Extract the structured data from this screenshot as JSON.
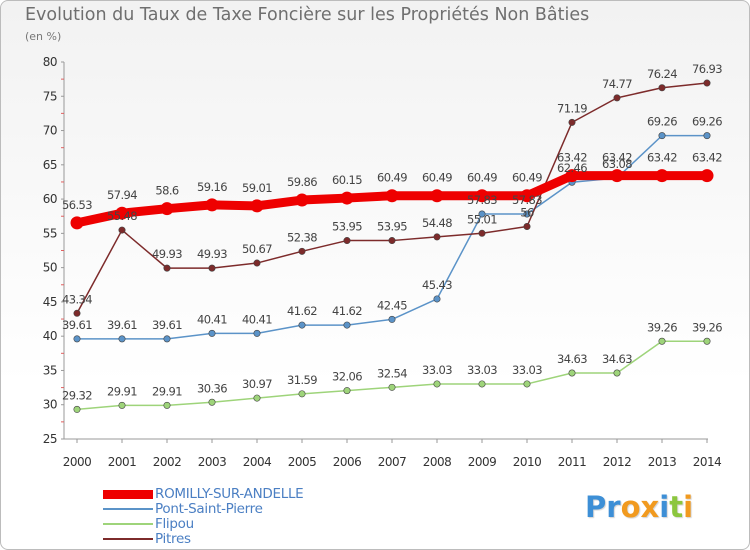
{
  "title": "Evolution du Taux de Taxe Foncière sur les Propriétés Non Bâties",
  "unit": "(en %)",
  "logo": {
    "text": "Proxiti",
    "letters": [
      "P",
      "r",
      "o",
      "x",
      "i",
      "t",
      "i"
    ],
    "colors": [
      "#3d8fd6",
      "#3d8fd6",
      "#f19a1f",
      "#f19a1f",
      "#3d8fd6",
      "#8cc63f",
      "#f19a1f"
    ]
  },
  "chart_data": {
    "type": "line",
    "x": [
      "2000",
      "2001",
      "2002",
      "2003",
      "2004",
      "2005",
      "2006",
      "2007",
      "2008",
      "2009",
      "2010",
      "2011",
      "2012",
      "2013",
      "2014"
    ],
    "ylim": [
      25,
      80
    ],
    "yticks": [
      "25",
      "30",
      "35",
      "40",
      "45",
      "50",
      "55",
      "60",
      "65",
      "70",
      "75",
      "80"
    ],
    "grid": false,
    "legend_position": "bottom-left",
    "series": [
      {
        "name": "ROMILLY-SUR-ANDELLE",
        "color": "#ee0000",
        "width": 9,
        "values": [
          56.53,
          57.94,
          58.6,
          59.16,
          59.01,
          59.86,
          60.15,
          60.49,
          60.49,
          60.49,
          60.49,
          63.42,
          63.42,
          63.42,
          63.42
        ],
        "labels": [
          "56.53",
          "57.94",
          "58.6",
          "59.16",
          "59.01",
          "59.86",
          "60.15",
          "60.49",
          "60.49",
          "60.49",
          "60.49",
          "63.42",
          "63.42",
          "63.42",
          "63.42"
        ]
      },
      {
        "name": "Pont-Saint-Pierre",
        "color": "#5b93c8",
        "width": 1.5,
        "values": [
          39.61,
          39.61,
          39.61,
          40.41,
          40.41,
          41.62,
          41.62,
          42.45,
          45.43,
          57.83,
          57.83,
          62.46,
          63.08,
          69.26,
          69.26
        ],
        "labels": [
          "39.61",
          "39.61",
          "39.61",
          "40.41",
          "40.41",
          "41.62",
          "41.62",
          "42.45",
          "45.43",
          "57.83",
          "57.83",
          "62.46",
          "63.08",
          "69.26",
          "69.26"
        ]
      },
      {
        "name": "Flipou",
        "color": "#9ed47a",
        "width": 1.5,
        "values": [
          29.32,
          29.91,
          29.91,
          30.36,
          30.97,
          31.59,
          32.06,
          32.54,
          33.03,
          33.03,
          33.03,
          34.63,
          34.63,
          39.26,
          39.26
        ],
        "labels": [
          "29.32",
          "29.91",
          "29.91",
          "30.36",
          "30.97",
          "31.59",
          "32.06",
          "32.54",
          "33.03",
          "33.03",
          "33.03",
          "34.63",
          "34.63",
          "39.26",
          "39.26"
        ]
      },
      {
        "name": "Pitres",
        "color": "#7d2b2b",
        "width": 1.5,
        "values": [
          43.34,
          55.48,
          49.93,
          49.93,
          50.67,
          52.38,
          53.95,
          53.95,
          54.48,
          55.01,
          56.0,
          71.19,
          74.77,
          76.24,
          76.93
        ],
        "labels": [
          "43.34",
          "55.48",
          "49.93",
          "49.93",
          "50.67",
          "52.38",
          "53.95",
          "53.95",
          "54.48",
          "55.01",
          "56",
          "71.19",
          "74.77",
          "76.24",
          "76.93"
        ]
      }
    ]
  }
}
